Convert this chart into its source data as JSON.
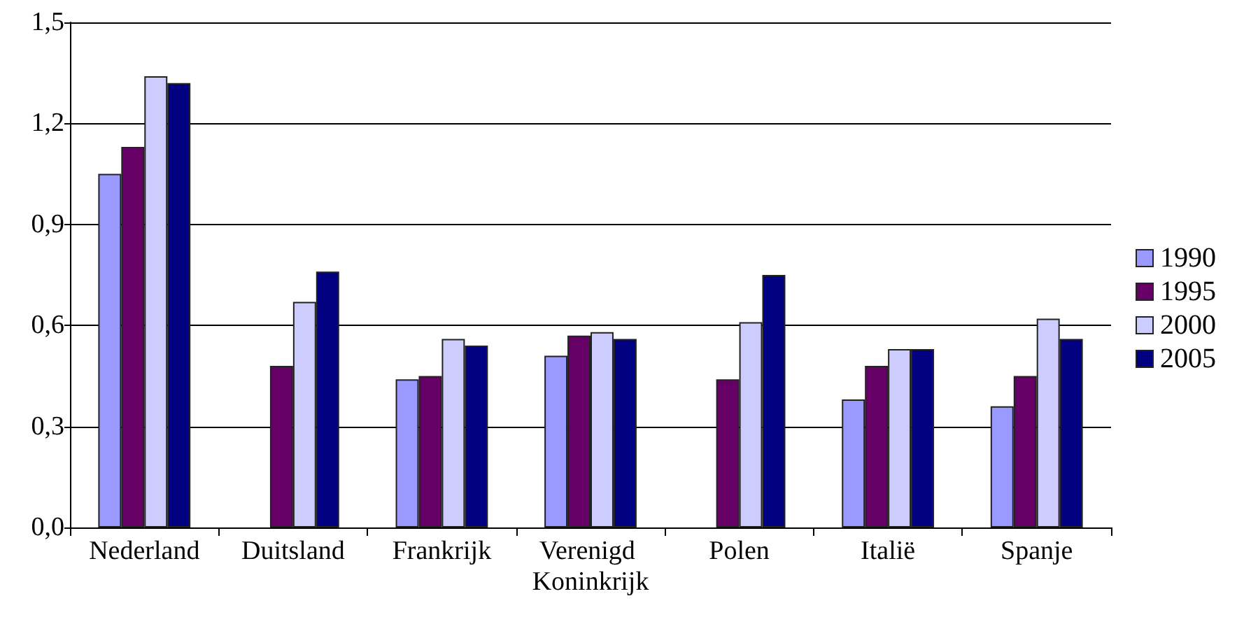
{
  "chart_data": {
    "type": "bar",
    "categories": [
      "Nederland",
      "Duitsland",
      "Frankrijk",
      "Verenigd Koninkrijk",
      "Polen",
      "Italië",
      "Spanje"
    ],
    "series": [
      {
        "name": "1990",
        "color": "#9999ff",
        "values": [
          1.05,
          null,
          0.44,
          0.51,
          null,
          0.38,
          0.36
        ]
      },
      {
        "name": "1995",
        "color": "#660066",
        "values": [
          1.13,
          0.48,
          0.45,
          0.57,
          0.44,
          0.48,
          0.45
        ]
      },
      {
        "name": "2000",
        "color": "#ccccff",
        "values": [
          1.34,
          0.67,
          0.56,
          0.58,
          0.61,
          0.53,
          0.62
        ]
      },
      {
        "name": "2005",
        "color": "#000080",
        "values": [
          1.32,
          0.76,
          0.54,
          0.56,
          0.75,
          0.53,
          0.56
        ]
      }
    ],
    "ylim": [
      0,
      1.5
    ],
    "yticks": [
      {
        "value": 0,
        "label": "0,0"
      },
      {
        "value": 0.3,
        "label": "0,3"
      },
      {
        "value": 0.6,
        "label": "0,6"
      },
      {
        "value": 0.9,
        "label": "0,9"
      },
      {
        "value": 1.2,
        "label": "1,2"
      },
      {
        "value": 1.5,
        "label": "1,5"
      }
    ],
    "grid": "y",
    "legend": "right"
  }
}
